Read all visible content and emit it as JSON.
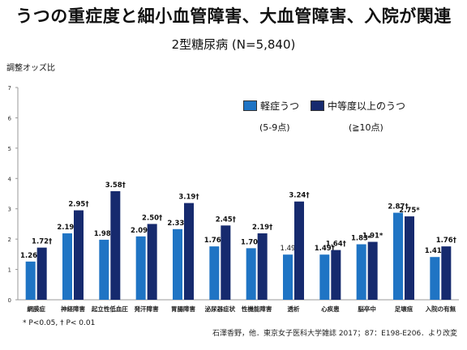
{
  "title": "うつの重症度と細小血管障害、大血管障害、入院が関連",
  "subtitle": "2型糖尿病 (N=5,840)",
  "footnote": "* P<0.05, † P< 0.01",
  "source": "石澤香野，他．東京女子医科大学雑誌 2017；87：E198-E206．より改変",
  "chart_data": {
    "type": "bar",
    "ylabel": "調整オッズ比",
    "ylim": [
      0,
      7
    ],
    "yticks": [
      "0",
      "1",
      "2",
      "3",
      "4",
      "5",
      "6",
      "7"
    ],
    "categories": [
      "網膜症",
      "神経障害",
      "起立性低血圧",
      "発汗障害",
      "胃腸障害",
      "泌尿器症状",
      "性機能障害",
      "透析",
      "心疾患",
      "脳卒中",
      "足壊疽",
      "入院の有無"
    ],
    "series": [
      {
        "name": "軽症うつ",
        "range_label": "(5-9点)",
        "color": "#1f74c4",
        "values": [
          1.26,
          2.19,
          1.98,
          2.09,
          2.33,
          1.76,
          1.7,
          1.49,
          1.49,
          1.83,
          2.87,
          1.41
        ],
        "labels": [
          "1.26†",
          "2.19†",
          "1.98†",
          "2.09†",
          "2.33†",
          "1.76†",
          "1.70†",
          "1.49",
          "1.49†",
          "1.83*",
          "2.87†",
          "1.41†"
        ]
      },
      {
        "name": "中等度以上のうつ",
        "range_label": "(≧10点)",
        "color": "#162a6e",
        "values": [
          1.72,
          2.95,
          3.58,
          2.5,
          3.19,
          2.45,
          2.19,
          3.24,
          1.64,
          1.91,
          2.75,
          1.76
        ],
        "labels": [
          "1.72†",
          "2.95†",
          "3.58†",
          "2.50†",
          "3.19†",
          "2.45†",
          "2.19†",
          "3.24†",
          "1.64†",
          "1.91*",
          "2.75*",
          "1.76†"
        ]
      }
    ]
  }
}
